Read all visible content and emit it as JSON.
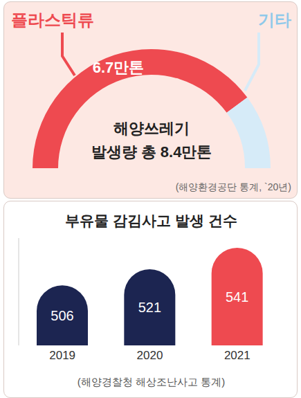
{
  "chart_data": [
    {
      "type": "pie",
      "title": "해양쓰레기",
      "subtitle": "발생량 총 8.4만톤",
      "categories": [
        "플라스틱류",
        "기타"
      ],
      "values": [
        6.7,
        1.7
      ],
      "value_labels": [
        "6.7만톤",
        null
      ],
      "colors": [
        "#ee4a50",
        "#d6ebf8"
      ],
      "data_labels": true,
      "annotations": [
        "(해양환경공단 통계, `20년)"
      ]
    },
    {
      "type": "bar",
      "title": "부유물 감김사고 발생 건수",
      "categories": [
        "2019",
        "2020",
        "2021"
      ],
      "values": [
        506,
        521,
        541
      ],
      "colors": [
        "#1c2551",
        "#1c2551",
        "#ee4a50"
      ],
      "ylim": [
        450,
        550
      ],
      "data_labels": true,
      "tick_labels": "x",
      "annotations": [
        "(해양경찰청 해상조난사고 통계)"
      ]
    }
  ]
}
